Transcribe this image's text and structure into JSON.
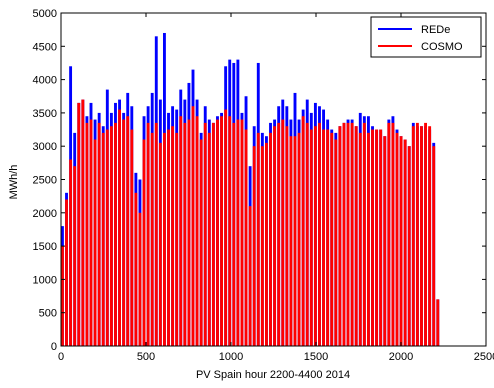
{
  "chart_data": {
    "type": "bar",
    "title": "",
    "xlabel": "PV Spain hour 2200-4400 2014",
    "ylabel": "MWh/h",
    "xlim": [
      0,
      2500
    ],
    "ylim": [
      0,
      5000
    ],
    "xticks": [
      "0",
      "500",
      "1000",
      "1500",
      "2000",
      "2500"
    ],
    "yticks": [
      "0",
      "500",
      "1000",
      "1500",
      "2000",
      "2500",
      "3000",
      "3500",
      "4000",
      "4500",
      "5000"
    ],
    "grid": false,
    "legend": "top-right",
    "series": [
      {
        "name": "REDe",
        "color": "#0000ff",
        "x": [
          0,
          24,
          48,
          72,
          96,
          120,
          144,
          168,
          192,
          216,
          240,
          264,
          288,
          312,
          336,
          360,
          384,
          408,
          432,
          456,
          480,
          504,
          528,
          552,
          576,
          600,
          624,
          648,
          672,
          696,
          720,
          744,
          768,
          792,
          816,
          840,
          864,
          888,
          912,
          936,
          960,
          984,
          1008,
          1032,
          1056,
          1080,
          1104,
          1128,
          1152,
          1176,
          1200,
          1224,
          1248,
          1272,
          1296,
          1320,
          1344,
          1368,
          1392,
          1416,
          1440,
          1464,
          1488,
          1512,
          1536,
          1560,
          1584,
          1608,
          1632,
          1656,
          1680,
          1704,
          1728,
          1752,
          1776,
          1800,
          1824,
          1848,
          1872,
          1896,
          1920,
          1944,
          1968,
          1992,
          2016,
          2040,
          2064,
          2088,
          2112,
          2136,
          2160,
          2184,
          2208
        ],
        "values": [
          1800,
          2300,
          4200,
          3200,
          3650,
          3700,
          3450,
          3650,
          3400,
          3500,
          3300,
          3850,
          3500,
          3650,
          3700,
          3500,
          3800,
          3600,
          2600,
          2500,
          3450,
          3600,
          3800,
          4650,
          3700,
          4700,
          3500,
          3600,
          3550,
          3850,
          3700,
          3950,
          4150,
          3700,
          3200,
          3600,
          3400,
          3350,
          3450,
          3500,
          4200,
          4300,
          4250,
          4300,
          3500,
          3750,
          2700,
          3300,
          4250,
          3200,
          3150,
          3350,
          3400,
          3600,
          3700,
          3600,
          3400,
          3800,
          3400,
          3550,
          3700,
          3500,
          3650,
          3600,
          3550,
          3400,
          3250,
          3200,
          3300,
          3350,
          3400,
          3400,
          3300,
          3500,
          3450,
          3450,
          3300,
          3250,
          3250,
          3150,
          3400,
          3450,
          3250,
          3150,
          3100,
          3000,
          3350,
          3300,
          3300,
          3300,
          3250,
          3050,
          700
        ]
      },
      {
        "name": "COSMO",
        "color": "#ff0000",
        "x": [
          0,
          24,
          48,
          72,
          96,
          120,
          144,
          168,
          192,
          216,
          240,
          264,
          288,
          312,
          336,
          360,
          384,
          408,
          432,
          456,
          480,
          504,
          528,
          552,
          576,
          600,
          624,
          648,
          672,
          696,
          720,
          744,
          768,
          792,
          816,
          840,
          864,
          888,
          912,
          936,
          960,
          984,
          1008,
          1032,
          1056,
          1080,
          1104,
          1128,
          1152,
          1176,
          1200,
          1224,
          1248,
          1272,
          1296,
          1320,
          1344,
          1368,
          1392,
          1416,
          1440,
          1464,
          1488,
          1512,
          1536,
          1560,
          1584,
          1608,
          1632,
          1656,
          1680,
          1704,
          1728,
          1752,
          1776,
          1800,
          1824,
          1848,
          1872,
          1896,
          1920,
          1944,
          1968,
          1992,
          2016,
          2040,
          2064,
          2088,
          2112,
          2136,
          2160,
          2184,
          2208
        ],
        "values": [
          1500,
          2200,
          2800,
          2700,
          3650,
          3700,
          3350,
          3400,
          3100,
          3350,
          3200,
          3250,
          3300,
          3350,
          3550,
          3400,
          3450,
          3250,
          2300,
          2000,
          3100,
          3350,
          3200,
          3350,
          3050,
          3200,
          3250,
          3300,
          3200,
          3450,
          3350,
          3400,
          3600,
          3450,
          3100,
          3350,
          3200,
          3350,
          3400,
          3450,
          3550,
          3450,
          3350,
          3400,
          3400,
          3250,
          2100,
          3000,
          3200,
          3000,
          3050,
          3200,
          3300,
          3350,
          3400,
          3300,
          3150,
          3150,
          3200,
          3450,
          3350,
          3250,
          3300,
          3350,
          3250,
          3250,
          3200,
          3100,
          3300,
          3350,
          3350,
          3350,
          3300,
          3200,
          3350,
          3200,
          3250,
          3250,
          3250,
          3150,
          3350,
          3350,
          3200,
          3150,
          3100,
          3000,
          3300,
          3350,
          3300,
          3350,
          3300,
          3000,
          700
        ]
      }
    ]
  }
}
